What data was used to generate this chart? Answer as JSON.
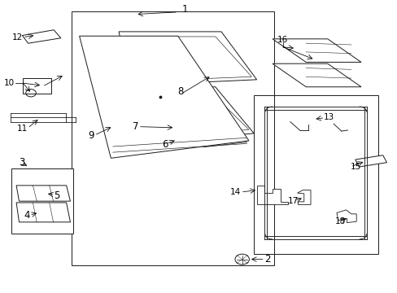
{
  "bg_color": "#ffffff",
  "line_color": "#1a1a1a",
  "lw": 0.7,
  "fs": 8.5
}
